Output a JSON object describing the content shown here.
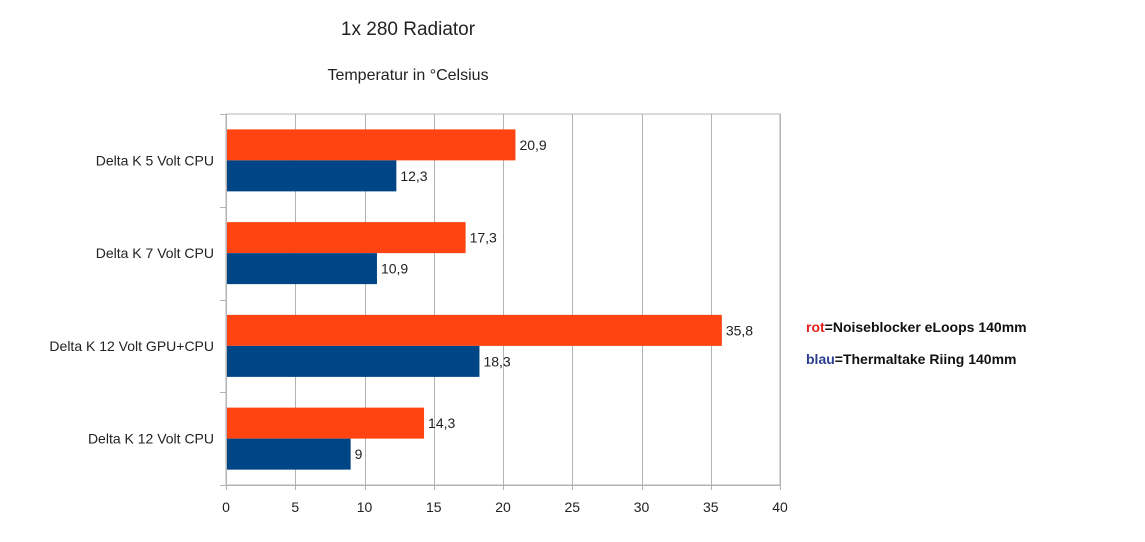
{
  "chart_data": {
    "type": "bar",
    "orientation": "horizontal",
    "title": "1x 280 Radiator",
    "subtitle": "Temperatur in °Celsius",
    "categories": [
      "Delta K 5 Volt CPU",
      "Delta K 7 Volt CPU",
      "Delta K 12 Volt GPU+CPU",
      "Delta K 12 Volt CPU"
    ],
    "series": [
      {
        "name": "Noiseblocker eLoops 140mm",
        "color": "#ff4411",
        "values": [
          20.9,
          17.3,
          35.8,
          14.3
        ],
        "labels": [
          "20,9",
          "17,3",
          "35,8",
          "14,3"
        ]
      },
      {
        "name": "Thermaltake Riing 140mm",
        "color": "#004586",
        "values": [
          12.3,
          10.9,
          18.3,
          9
        ],
        "labels": [
          "12,3",
          "10,9",
          "18,3",
          "9"
        ]
      }
    ],
    "xlim": [
      0,
      40
    ],
    "xticks": [
      0,
      5,
      10,
      15,
      20,
      25,
      30,
      35,
      40
    ],
    "grid": true,
    "xlabel": "",
    "ylabel": ""
  },
  "legend": {
    "red": {
      "key": "rot",
      "text": "=Noiseblocker eLoops 140mm",
      "key_color": "#e02020"
    },
    "blue": {
      "key": "blau",
      "text": "=Thermaltake Riing 140mm",
      "key_color": "#2a3d8f"
    }
  }
}
